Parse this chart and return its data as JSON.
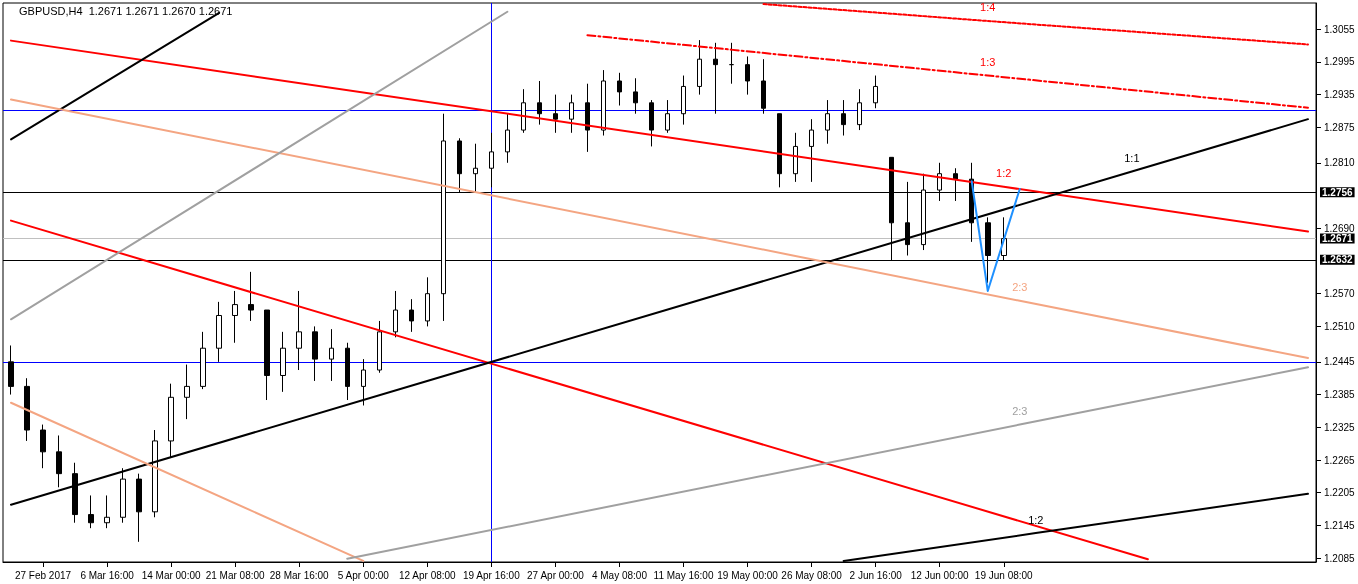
{
  "chart_data": {
    "type": "candlestick",
    "title": "GBPUSD,H4  1.2671 1.2671 1.2670 1.2671",
    "categories": [
      null,
      null,
      "27 Feb 2017",
      null,
      null,
      null,
      "6 Mar 16:00",
      null,
      null,
      null,
      "14 Mar 00:00",
      null,
      null,
      null,
      "21 Mar 08:00",
      null,
      null,
      null,
      "28 Mar 16:00",
      null,
      null,
      null,
      "5 Apr 00:00",
      null,
      null,
      null,
      "12 Apr 08:00",
      null,
      null,
      null,
      "19 Apr 16:00",
      null,
      null,
      null,
      "27 Apr 00:00",
      null,
      null,
      null,
      "4 May 08:00",
      null,
      null,
      null,
      "11 May 16:00",
      null,
      null,
      null,
      "19 May 00:00",
      null,
      null,
      null,
      "26 May 08:00",
      null,
      null,
      null,
      "2 Jun 16:00",
      null,
      null,
      null,
      "12 Jun 00:00",
      null,
      null,
      null,
      "19 Jun 08:00",
      null,
      null,
      null,
      null,
      null,
      null,
      null,
      null,
      null,
      null,
      null,
      null,
      null,
      null,
      null,
      null,
      null,
      null,
      null
    ],
    "ylim": [
      1.2078,
      1.3103
    ],
    "yticks": [
      1.2085,
      1.2145,
      1.2205,
      1.2265,
      1.2325,
      1.2385,
      1.2445,
      {
        "value": 1.251,
        "label": "1.2510"
      },
      {
        "value": 1.257,
        "label": "1.2570"
      },
      {
        "value": 1.269,
        "label": "1.2690"
      },
      {
        "value": 1.281,
        "label": "1.2810"
      },
      1.2875,
      1.2935,
      1.2995,
      1.3055
    ],
    "series": [
      {
        "color": "#000000",
        "ohlc": [
          [
            1.2445,
            1.2475,
            1.2385,
            1.24
          ],
          [
            1.24,
            1.2415,
            1.23,
            1.232
          ],
          [
            1.232,
            1.233,
            1.225,
            1.228
          ],
          [
            1.228,
            1.231,
            1.2215,
            1.224
          ],
          [
            1.224,
            1.226,
            1.215,
            1.2165
          ],
          [
            1.2165,
            1.22,
            1.214,
            1.215
          ],
          [
            1.215,
            1.22,
            1.214,
            1.216
          ],
          [
            1.216,
            1.225,
            1.215,
            1.223
          ],
          [
            1.223,
            1.224,
            1.2115,
            1.217
          ],
          [
            1.217,
            1.232,
            1.216,
            1.23
          ],
          [
            1.23,
            1.2405,
            1.227,
            1.238
          ],
          [
            1.238,
            1.244,
            1.234,
            1.24
          ],
          [
            1.24,
            1.25,
            1.2395,
            1.247
          ],
          [
            1.247,
            1.2555,
            1.2445,
            1.253
          ],
          [
            1.253,
            1.2575,
            1.248,
            1.255
          ],
          [
            1.255,
            1.261,
            1.252,
            1.254
          ],
          [
            1.254,
            1.254,
            1.2375,
            1.242
          ],
          [
            1.242,
            1.25,
            1.239,
            1.247
          ],
          [
            1.247,
            1.2575,
            1.243,
            1.25
          ],
          [
            1.25,
            1.251,
            1.241,
            1.245
          ],
          [
            1.245,
            1.2505,
            1.241,
            1.247
          ],
          [
            1.247,
            1.248,
            1.2375,
            1.24
          ],
          [
            1.24,
            1.245,
            1.2365,
            1.243
          ],
          [
            1.243,
            1.252,
            1.2425,
            1.25
          ],
          [
            1.25,
            1.2575,
            1.249,
            1.254
          ],
          [
            1.254,
            1.256,
            1.25,
            1.252
          ],
          [
            1.252,
            1.26,
            1.251,
            1.257
          ],
          [
            1.257,
            1.29,
            1.252,
            1.285
          ],
          [
            1.285,
            1.2855,
            1.2755,
            1.279
          ],
          [
            1.279,
            1.2845,
            1.2755,
            1.28
          ],
          [
            1.28,
            1.2865,
            1.2765,
            1.283
          ],
          [
            1.283,
            1.29,
            1.281,
            1.287
          ],
          [
            1.287,
            1.2945,
            1.2865,
            1.292
          ],
          [
            1.292,
            1.296,
            1.288,
            1.29
          ],
          [
            1.29,
            1.2935,
            1.2865,
            1.289
          ],
          [
            1.289,
            1.2935,
            1.2865,
            1.292
          ],
          [
            1.292,
            1.2955,
            1.283,
            1.287
          ],
          [
            1.287,
            1.298,
            1.286,
            1.296
          ],
          [
            1.296,
            1.2975,
            1.2915,
            1.294
          ],
          [
            1.294,
            1.2965,
            1.29,
            1.292
          ],
          [
            1.292,
            1.2925,
            1.284,
            1.287
          ],
          [
            1.287,
            1.2925,
            1.2865,
            1.29
          ],
          [
            1.29,
            1.297,
            1.288,
            1.295
          ],
          [
            1.295,
            1.3035,
            1.2935,
            1.3
          ],
          [
            1.3,
            1.303,
            1.29,
            1.299
          ],
          [
            1.299,
            1.303,
            1.2955,
            1.299
          ],
          [
            1.299,
            1.3005,
            1.2935,
            1.296
          ],
          [
            1.296,
            1.3,
            1.29,
            1.291
          ],
          [
            1.29,
            1.29,
            1.2765,
            1.279
          ],
          [
            1.279,
            1.2865,
            1.2775,
            1.284
          ],
          [
            1.284,
            1.289,
            1.2775,
            1.287
          ],
          [
            1.287,
            1.2925,
            1.2845,
            1.29
          ],
          [
            1.29,
            1.2925,
            1.286,
            1.288
          ],
          [
            1.288,
            1.2945,
            1.287,
            1.292
          ],
          [
            1.292,
            1.297,
            1.291,
            1.295
          ],
          [
            1.282,
            1.282,
            1.263,
            1.27
          ],
          [
            1.27,
            1.2775,
            1.264,
            1.266
          ],
          [
            1.266,
            1.279,
            1.265,
            1.276
          ],
          [
            1.276,
            1.281,
            1.274,
            1.279
          ],
          [
            1.279,
            1.28,
            1.274,
            1.278
          ],
          [
            1.278,
            1.281,
            1.2665,
            1.27
          ],
          [
            1.27,
            1.271,
            1.259,
            1.264
          ],
          [
            1.264,
            1.271,
            1.263,
            1.2671
          ],
          null,
          null,
          null,
          null,
          null,
          null,
          null,
          null,
          null,
          null,
          null,
          null,
          null,
          null,
          null,
          null,
          null,
          null,
          null
        ]
      },
      {
        "type": "line",
        "name": "1:2",
        "color": "#ff0000",
        "values": [
          1.3034,
          null,
          null,
          null,
          null,
          null,
          null,
          null,
          null,
          null,
          null,
          null,
          null,
          null,
          null,
          null,
          null,
          null,
          null,
          null,
          null,
          null,
          null,
          null,
          null,
          null,
          null,
          null,
          null,
          null,
          null,
          null,
          null,
          null,
          null,
          null,
          null,
          null,
          null,
          null,
          null,
          null,
          null,
          null,
          null,
          null,
          null,
          null,
          null,
          null,
          null,
          null,
          null,
          null,
          null,
          null,
          null,
          null,
          null,
          null,
          null,
          null,
          1.2766,
          null,
          null,
          null,
          null,
          null,
          null,
          null,
          null,
          null,
          null,
          null,
          null,
          null,
          null,
          null,
          null,
          null,
          null,
          1.2684
        ]
      },
      {
        "type": "line",
        "color": "#ff0000",
        "values": [
          1.2704,
          null,
          null,
          null,
          null,
          null,
          null,
          null,
          null,
          null,
          null,
          null,
          null,
          null,
          null,
          null,
          null,
          null,
          null,
          null,
          null,
          null,
          null,
          null,
          null,
          null,
          null,
          null,
          null,
          null,
          null,
          null,
          null,
          null,
          null,
          null,
          null,
          null,
          null,
          null,
          null,
          null,
          null,
          null,
          null,
          null,
          null,
          null,
          null,
          null,
          null,
          null,
          null,
          null,
          null,
          null,
          null,
          null,
          null,
          null,
          null,
          null,
          null,
          null,
          null,
          null,
          null,
          null,
          null,
          null,
          null,
          1.2083,
          null,
          null,
          null,
          null,
          null,
          null,
          null,
          null,
          null,
          null
        ]
      },
      {
        "type": "line",
        "name": "1:1",
        "color": "#000000",
        "values": [
          1.2183,
          null,
          null,
          null,
          null,
          null,
          null,
          null,
          null,
          null,
          null,
          null,
          null,
          null,
          null,
          null,
          null,
          null,
          null,
          null,
          null,
          null,
          null,
          null,
          null,
          null,
          null,
          null,
          null,
          null,
          null,
          null,
          null,
          null,
          null,
          null,
          null,
          null,
          null,
          null,
          null,
          null,
          null,
          null,
          null,
          null,
          null,
          null,
          null,
          null,
          null,
          null,
          null,
          null,
          null,
          null,
          null,
          null,
          null,
          null,
          null,
          null,
          null,
          null,
          null,
          null,
          null,
          null,
          null,
          null,
          1.2794,
          null,
          null,
          null,
          null,
          null,
          null,
          null,
          null,
          null,
          null,
          1.289
        ]
      },
      {
        "type": "line",
        "color": "#000000",
        "values": [
          1.2853,
          null,
          null,
          null,
          null,
          null,
          null,
          null,
          null,
          null,
          null,
          null,
          null,
          1.3085,
          null,
          null,
          null,
          null,
          null,
          null,
          null,
          null,
          null,
          null,
          null,
          null,
          null,
          null,
          null,
          null,
          null,
          null,
          null,
          null,
          null,
          null,
          null,
          null,
          null,
          null,
          null,
          null,
          null,
          null,
          null,
          null,
          null,
          null,
          null,
          null,
          null,
          null,
          null,
          null,
          null,
          null,
          null,
          null,
          null,
          null,
          null,
          null,
          null,
          null,
          null,
          null,
          null,
          null,
          null,
          null,
          null,
          null,
          null,
          null,
          null,
          null,
          null,
          null,
          null,
          null,
          null,
          null
        ]
      },
      {
        "type": "line",
        "name": "1:2",
        "color": "#000000",
        "values": [
          null,
          null,
          null,
          null,
          null,
          null,
          null,
          null,
          null,
          null,
          null,
          null,
          null,
          null,
          null,
          null,
          null,
          null,
          null,
          null,
          null,
          null,
          null,
          null,
          null,
          null,
          null,
          null,
          null,
          null,
          null,
          null,
          null,
          null,
          null,
          null,
          null,
          null,
          null,
          null,
          null,
          null,
          null,
          null,
          null,
          null,
          null,
          null,
          null,
          null,
          null,
          null,
          1.208,
          null,
          null,
          null,
          null,
          null,
          null,
          null,
          null,
          null,
          null,
          null,
          1.2131,
          null,
          null,
          null,
          null,
          null,
          null,
          null,
          null,
          null,
          null,
          null,
          null,
          null,
          null,
          null,
          null,
          1.2203
        ]
      },
      {
        "type": "line",
        "name": "2:3",
        "color": "#f4a582",
        "values": [
          1.2926,
          null,
          null,
          null,
          null,
          null,
          null,
          null,
          null,
          null,
          null,
          null,
          null,
          null,
          null,
          null,
          null,
          null,
          null,
          null,
          null,
          null,
          null,
          null,
          null,
          null,
          null,
          null,
          null,
          null,
          null,
          null,
          null,
          null,
          null,
          null,
          null,
          null,
          null,
          null,
          null,
          null,
          null,
          null,
          null,
          null,
          null,
          null,
          null,
          null,
          null,
          null,
          null,
          null,
          null,
          null,
          null,
          null,
          null,
          null,
          null,
          null,
          null,
          1.2557,
          null,
          null,
          null,
          null,
          null,
          null,
          null,
          null,
          null,
          null,
          null,
          null,
          null,
          null,
          null,
          null,
          null,
          1.2452
        ]
      },
      {
        "type": "line",
        "color": "#f4a582",
        "values": [
          1.237,
          null,
          null,
          null,
          null,
          null,
          null,
          null,
          null,
          null,
          null,
          null,
          null,
          null,
          null,
          null,
          null,
          null,
          null,
          null,
          null,
          null,
          1.208,
          null,
          null,
          null,
          null,
          null,
          null,
          null,
          null,
          null,
          null,
          null,
          null,
          null,
          null,
          null,
          null,
          null,
          null,
          null,
          null,
          null,
          null,
          null,
          null,
          null,
          null,
          null,
          null,
          null,
          null,
          null,
          null,
          null,
          null,
          null,
          null,
          null,
          null,
          null,
          null,
          null,
          null,
          null,
          null,
          null,
          null,
          null,
          null,
          null,
          null,
          null,
          null,
          null,
          null,
          null,
          null,
          null,
          null,
          null
        ]
      },
      {
        "type": "line",
        "color": "#a0a0a0",
        "values": [
          1.2523,
          null,
          null,
          null,
          null,
          null,
          null,
          null,
          null,
          null,
          null,
          null,
          null,
          null,
          null,
          null,
          null,
          null,
          null,
          null,
          null,
          null,
          null,
          null,
          null,
          null,
          null,
          null,
          null,
          null,
          null,
          1.3087,
          null,
          null,
          null,
          null,
          null,
          null,
          null,
          null,
          null,
          null,
          null,
          null,
          null,
          null,
          null,
          null,
          null,
          null,
          null,
          null,
          null,
          null,
          null,
          null,
          null,
          null,
          null,
          null,
          null,
          null,
          null,
          null,
          null,
          null,
          null,
          null,
          null,
          null,
          null,
          null,
          null,
          null,
          null,
          null,
          null,
          null,
          null,
          null,
          null,
          null
        ]
      },
      {
        "type": "line",
        "name": "2:3",
        "color": "#a0a0a0",
        "values": [
          null,
          null,
          null,
          null,
          null,
          null,
          null,
          null,
          null,
          null,
          null,
          null,
          null,
          null,
          null,
          null,
          null,
          null,
          null,
          null,
          null,
          1.2084,
          null,
          null,
          null,
          null,
          null,
          null,
          null,
          null,
          null,
          null,
          null,
          null,
          null,
          null,
          null,
          null,
          null,
          null,
          null,
          null,
          null,
          null,
          null,
          null,
          null,
          null,
          null,
          null,
          null,
          null,
          null,
          null,
          null,
          null,
          null,
          null,
          null,
          null,
          null,
          null,
          null,
          1.233,
          null,
          null,
          null,
          null,
          null,
          null,
          null,
          null,
          null,
          null,
          null,
          null,
          null,
          null,
          null,
          null,
          null,
          1.2435
        ]
      },
      {
        "type": "line",
        "name": "1:3",
        "color": "#ff0000",
        "line_style": "dashed",
        "values": [
          null,
          null,
          null,
          null,
          null,
          null,
          null,
          null,
          null,
          null,
          null,
          null,
          null,
          null,
          null,
          null,
          null,
          null,
          null,
          null,
          null,
          null,
          null,
          null,
          null,
          null,
          null,
          null,
          null,
          null,
          null,
          null,
          null,
          null,
          null,
          null,
          1.3044,
          null,
          null,
          null,
          null,
          null,
          null,
          null,
          null,
          null,
          null,
          null,
          null,
          null,
          null,
          null,
          null,
          null,
          null,
          null,
          null,
          null,
          null,
          null,
          null,
          1.297,
          null,
          null,
          null,
          null,
          null,
          null,
          null,
          null,
          null,
          null,
          null,
          null,
          null,
          null,
          null,
          null,
          null,
          null,
          null,
          1.2911
        ]
      },
      {
        "type": "line",
        "name": "1:4",
        "color": "#ff0000",
        "line_style": "dotted",
        "values": [
          null,
          null,
          null,
          null,
          null,
          null,
          null,
          null,
          null,
          null,
          null,
          null,
          null,
          null,
          null,
          null,
          null,
          null,
          null,
          null,
          null,
          null,
          null,
          null,
          null,
          null,
          null,
          null,
          null,
          null,
          null,
          null,
          null,
          null,
          null,
          null,
          null,
          null,
          null,
          null,
          null,
          null,
          null,
          null,
          null,
          null,
          null,
          1.3101,
          null,
          null,
          null,
          null,
          null,
          null,
          null,
          null,
          null,
          null,
          null,
          null,
          null,
          1.307,
          null,
          null,
          null,
          null,
          null,
          null,
          null,
          null,
          null,
          null,
          null,
          null,
          null,
          null,
          null,
          null,
          null,
          null,
          null,
          1.3027
        ]
      },
      {
        "type": "line",
        "color": "#1e90ff",
        "values": [
          null,
          null,
          null,
          null,
          null,
          null,
          null,
          null,
          null,
          null,
          null,
          null,
          null,
          null,
          null,
          null,
          null,
          null,
          null,
          null,
          null,
          null,
          null,
          null,
          null,
          null,
          null,
          null,
          null,
          null,
          null,
          null,
          null,
          null,
          null,
          null,
          null,
          null,
          null,
          null,
          null,
          null,
          null,
          null,
          null,
          null,
          null,
          null,
          null,
          null,
          null,
          null,
          null,
          null,
          null,
          null,
          null,
          null,
          null,
          null,
          1.2776,
          1.2575,
          null,
          1.2762,
          null,
          null,
          null,
          null,
          null,
          null,
          null,
          null,
          null,
          null,
          null,
          null,
          null,
          null,
          null,
          null,
          null,
          null
        ]
      }
    ],
    "ref_lines": [
      {
        "axis": "y",
        "value": 1.2756,
        "label": "1.2756",
        "color": "#000000"
      },
      {
        "axis": "y",
        "value": 1.2671,
        "label": "1.2671",
        "color": "#c0c0c0"
      },
      {
        "axis": "y",
        "value": 1.2632,
        "label": "1.2632",
        "color": "#000000"
      },
      {
        "axis": "y",
        "value": 1.2907,
        "color": "#0000ff"
      },
      {
        "axis": "y",
        "value": 1.2445,
        "color": "#0000ff"
      },
      {
        "axis": "x",
        "value": "19 Apr 16:00",
        "color": "#0000ff"
      }
    ],
    "marker": "none"
  }
}
